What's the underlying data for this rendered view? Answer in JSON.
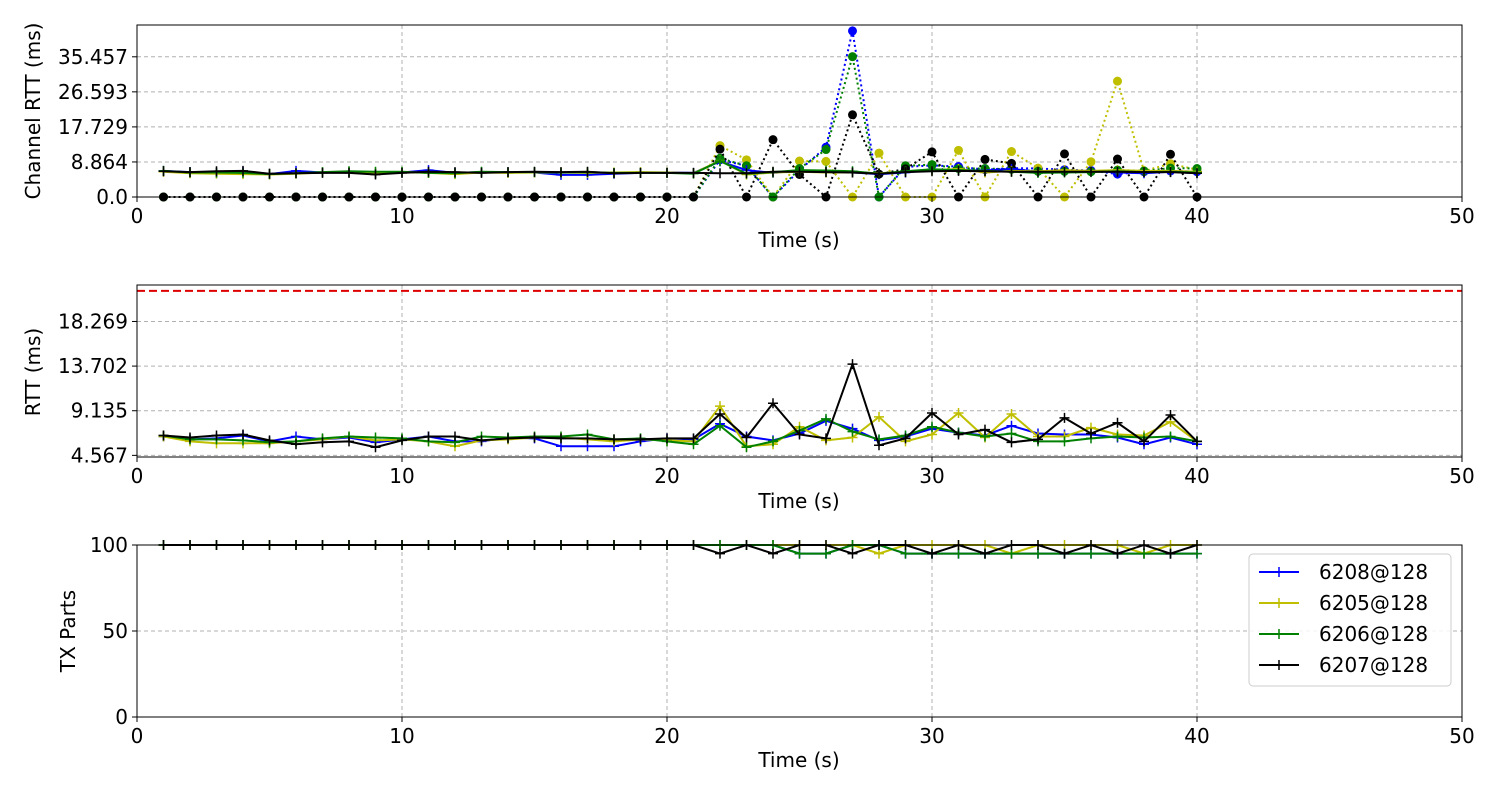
{
  "colors": {
    "6208@128": "#0000ff",
    "6205@128": "#bfbf00",
    "6206@128": "#008000",
    "6207@128": "#000000",
    "threshold": "#dd0000",
    "grid": "#b0b0b0"
  },
  "chart_data": [
    {
      "type": "line",
      "xlabel": "Time (s)",
      "ylabel": "Channel RTT (ms)",
      "xlim": [
        0,
        50
      ],
      "ylim": [
        0,
        43.5
      ],
      "xticks": [
        0,
        10,
        20,
        30,
        40,
        50
      ],
      "xtick_labels": [
        "0",
        "10",
        "20",
        "30",
        "40",
        "50"
      ],
      "yticks": [
        0.0,
        8.864,
        17.729,
        26.593,
        35.457
      ],
      "ytick_labels": [
        "0.0",
        "8.864",
        "17.729",
        "26.593",
        "35.457"
      ],
      "grid": true,
      "x": [
        1,
        2,
        3,
        4,
        5,
        6,
        7,
        8,
        9,
        10,
        11,
        12,
        13,
        14,
        15,
        16,
        17,
        18,
        19,
        20,
        21,
        22,
        23,
        24,
        25,
        26,
        27,
        28,
        29,
        30,
        31,
        32,
        33,
        34,
        35,
        36,
        37,
        38,
        39,
        40
      ],
      "series": [
        {
          "name": "6208@128",
          "style": "avg",
          "values": [
            6.6,
            6.3,
            6.1,
            6.4,
            5.8,
            6.6,
            6.2,
            6.3,
            5.9,
            6.2,
            6.8,
            6.1,
            6.3,
            6.2,
            6.2,
            5.6,
            5.6,
            5.9,
            6.1,
            6.2,
            6.1,
            9.0,
            6.8,
            6.1,
            6.7,
            6.3,
            6.2,
            5.8,
            6.2,
            6.9,
            6.8,
            6.7,
            7.1,
            6.4,
            6.5,
            6.6,
            6.2,
            6.0,
            6.4,
            6.0
          ]
        },
        {
          "name": "6205@128",
          "style": "avg",
          "values": [
            6.4,
            6.0,
            5.9,
            5.8,
            5.7,
            5.9,
            6.2,
            6.4,
            6.2,
            6.3,
            6.1,
            5.8,
            6.2,
            6.1,
            6.2,
            6.2,
            6.1,
            6.2,
            6.3,
            6.2,
            6.0,
            9.2,
            5.7,
            6.2,
            6.4,
            6.2,
            6.2,
            6.0,
            6.4,
            6.7,
            7.1,
            6.2,
            6.6,
            6.5,
            6.8,
            6.6,
            6.8,
            6.6,
            6.6,
            6.4
          ]
        },
        {
          "name": "6206@128",
          "style": "avg",
          "values": [
            6.6,
            6.2,
            6.2,
            6.1,
            5.8,
            6.0,
            6.3,
            6.5,
            6.4,
            6.4,
            6.1,
            6.0,
            6.4,
            6.3,
            6.3,
            6.2,
            6.3,
            6.1,
            6.1,
            6.1,
            5.9,
            9.1,
            5.9,
            6.3,
            6.8,
            6.7,
            6.5,
            5.9,
            6.5,
            7.0,
            6.8,
            6.6,
            6.4,
            6.1,
            6.2,
            6.3,
            6.5,
            6.3,
            6.4,
            6.2
          ]
        },
        {
          "name": "6207@128",
          "style": "avg",
          "values": [
            6.5,
            6.3,
            6.5,
            6.6,
            5.9,
            6.0,
            6.1,
            6.1,
            5.7,
            6.1,
            6.4,
            6.3,
            6.1,
            6.3,
            6.4,
            6.3,
            6.4,
            6.0,
            6.1,
            6.1,
            6.1,
            6.0,
            6.0,
            6.4,
            6.4,
            6.3,
            6.2,
            5.9,
            6.3,
            6.5,
            6.6,
            6.5,
            6.4,
            6.4,
            6.4,
            6.4,
            6.4,
            6.3,
            6.3,
            6.0
          ]
        },
        {
          "name": "6208@128",
          "style": "peak",
          "values": [
            0,
            0,
            0,
            0,
            0,
            0,
            0,
            0,
            0,
            0,
            0,
            0,
            0,
            0,
            0,
            0,
            0,
            0,
            0,
            0,
            0,
            9.4,
            7.9,
            0,
            6.8,
            12.6,
            42.0,
            0,
            7.6,
            8.0,
            7.7,
            6.9,
            7.3,
            7.2,
            6.9,
            6.7,
            5.8,
            6.4,
            6.6,
            6.4
          ]
        },
        {
          "name": "6205@128",
          "style": "peak",
          "values": [
            0,
            0,
            0,
            0,
            0,
            0,
            0,
            0,
            0,
            0,
            0,
            0,
            0,
            0,
            0,
            0,
            0,
            0,
            0,
            0,
            0,
            13.0,
            9.4,
            0,
            9.1,
            9.0,
            0,
            11.1,
            0,
            0,
            11.8,
            0,
            11.5,
            7.3,
            0,
            8.9,
            29.3,
            6.6,
            8.4,
            6.9
          ]
        },
        {
          "name": "6206@128",
          "style": "peak",
          "values": [
            0,
            0,
            0,
            0,
            0,
            0,
            0,
            0,
            0,
            0,
            0,
            0,
            0,
            0,
            0,
            0,
            0,
            0,
            0,
            0,
            0,
            9.8,
            7.9,
            0,
            7.2,
            12.0,
            35.5,
            0,
            7.9,
            8.2,
            7.2,
            7.2,
            7.0,
            6.5,
            6.5,
            6.4,
            6.8,
            6.6,
            7.3,
            7.2
          ]
        },
        {
          "name": "6207@128",
          "style": "peak",
          "values": [
            0,
            0,
            0,
            0,
            0,
            0,
            0,
            0,
            0,
            0,
            0,
            0,
            0,
            0,
            0,
            0,
            0,
            0,
            0,
            0,
            0,
            12.1,
            0,
            14.5,
            5.7,
            0,
            20.8,
            5.8,
            7.1,
            11.4,
            0,
            9.5,
            8.5,
            0,
            10.9,
            0,
            9.6,
            0,
            10.8,
            0
          ]
        }
      ]
    },
    {
      "type": "line",
      "xlabel": "Time (s)",
      "ylabel": "RTT (ms)",
      "xlim": [
        0,
        50
      ],
      "ylim": [
        4.4,
        22.0
      ],
      "xticks": [
        0,
        10,
        20,
        30,
        40,
        50
      ],
      "xtick_labels": [
        "0",
        "10",
        "20",
        "30",
        "40",
        "50"
      ],
      "yticks": [
        4.567,
        9.135,
        13.702,
        18.269
      ],
      "ytick_labels": [
        "4.567",
        "9.135",
        "13.702",
        "18.269"
      ],
      "grid": true,
      "threshold": 21.4,
      "x": [
        1,
        2,
        3,
        4,
        5,
        6,
        7,
        8,
        9,
        10,
        11,
        12,
        13,
        14,
        15,
        16,
        17,
        18,
        19,
        20,
        21,
        22,
        23,
        24,
        25,
        26,
        27,
        28,
        29,
        30,
        31,
        32,
        33,
        34,
        35,
        36,
        37,
        38,
        39,
        40
      ],
      "series": [
        {
          "name": "6208@128",
          "values": [
            6.5,
            6.2,
            6.3,
            6.6,
            6.0,
            6.5,
            6.2,
            6.4,
            5.9,
            6.2,
            6.5,
            6.0,
            6.0,
            6.4,
            6.3,
            5.5,
            5.5,
            5.5,
            6.0,
            6.3,
            6.2,
            7.8,
            6.5,
            6.1,
            6.8,
            8.1,
            7.3,
            6.1,
            6.5,
            7.3,
            6.9,
            6.6,
            7.6,
            6.8,
            6.7,
            6.7,
            6.4,
            5.7,
            6.4,
            5.7
          ]
        },
        {
          "name": "6205@128",
          "values": [
            6.5,
            6.0,
            5.8,
            5.8,
            5.8,
            6.0,
            6.2,
            6.5,
            6.1,
            6.2,
            6.0,
            5.5,
            6.1,
            6.2,
            6.4,
            6.4,
            6.2,
            6.0,
            6.2,
            6.1,
            6.0,
            9.6,
            5.5,
            5.7,
            7.5,
            6.1,
            6.4,
            8.5,
            6.0,
            6.7,
            8.9,
            6.4,
            8.8,
            6.5,
            6.5,
            7.4,
            6.7,
            6.6,
            8.0,
            6.0
          ]
        },
        {
          "name": "6206@128",
          "values": [
            6.6,
            6.2,
            6.2,
            6.1,
            5.9,
            6.0,
            6.3,
            6.5,
            6.4,
            6.3,
            6.0,
            5.9,
            6.5,
            6.4,
            6.5,
            6.5,
            6.7,
            6.2,
            6.3,
            6.0,
            5.7,
            7.6,
            5.4,
            6.0,
            7.1,
            8.3,
            7.0,
            6.2,
            6.6,
            7.5,
            6.9,
            6.5,
            6.8,
            6.0,
            6.0,
            6.3,
            6.5,
            6.4,
            6.5,
            6.0
          ]
        },
        {
          "name": "6207@128",
          "values": [
            6.6,
            6.4,
            6.6,
            6.7,
            6.1,
            5.7,
            5.9,
            6.0,
            5.4,
            6.1,
            6.5,
            6.5,
            6.1,
            6.3,
            6.4,
            6.3,
            6.3,
            6.2,
            6.2,
            6.3,
            6.3,
            8.8,
            6.4,
            9.9,
            6.7,
            6.3,
            13.9,
            5.6,
            6.3,
            8.9,
            6.7,
            7.2,
            5.9,
            6.2,
            8.4,
            6.8,
            7.9,
            6.0,
            8.7,
            6.0
          ]
        }
      ]
    },
    {
      "type": "line",
      "xlabel": "Time (s)",
      "ylabel": "TX Parts",
      "xlim": [
        0,
        50
      ],
      "ylim": [
        0,
        100
      ],
      "xticks": [
        0,
        10,
        20,
        30,
        40,
        50
      ],
      "xtick_labels": [
        "0",
        "10",
        "20",
        "30",
        "40",
        "50"
      ],
      "yticks": [
        0,
        50,
        100
      ],
      "ytick_labels": [
        "0",
        "50",
        "100"
      ],
      "grid": true,
      "legend_position": "upper-right",
      "x": [
        1,
        2,
        3,
        4,
        5,
        6,
        7,
        8,
        9,
        10,
        11,
        12,
        13,
        14,
        15,
        16,
        17,
        18,
        19,
        20,
        21,
        22,
        23,
        24,
        25,
        26,
        27,
        28,
        29,
        30,
        31,
        32,
        33,
        34,
        35,
        36,
        37,
        38,
        39,
        40
      ],
      "series": [
        {
          "name": "6208@128",
          "values": [
            100,
            100,
            100,
            100,
            100,
            100,
            100,
            100,
            100,
            100,
            100,
            100,
            100,
            100,
            100,
            100,
            100,
            100,
            100,
            100,
            100,
            100,
            100,
            100,
            95,
            95,
            100,
            100,
            95,
            95,
            95,
            95,
            95,
            95,
            95,
            95,
            95,
            95,
            95,
            95
          ]
        },
        {
          "name": "6205@128",
          "values": [
            100,
            100,
            100,
            100,
            100,
            100,
            100,
            100,
            100,
            100,
            100,
            100,
            100,
            100,
            100,
            100,
            100,
            100,
            100,
            100,
            100,
            100,
            100,
            100,
            100,
            100,
            100,
            95,
            100,
            100,
            100,
            100,
            95,
            100,
            100,
            100,
            100,
            95,
            100,
            100
          ]
        },
        {
          "name": "6206@128",
          "values": [
            100,
            100,
            100,
            100,
            100,
            100,
            100,
            100,
            100,
            100,
            100,
            100,
            100,
            100,
            100,
            100,
            100,
            100,
            100,
            100,
            100,
            100,
            100,
            100,
            95,
            95,
            100,
            100,
            95,
            95,
            95,
            95,
            95,
            95,
            95,
            95,
            95,
            95,
            95,
            95
          ]
        },
        {
          "name": "6207@128",
          "values": [
            100,
            100,
            100,
            100,
            100,
            100,
            100,
            100,
            100,
            100,
            100,
            100,
            100,
            100,
            100,
            100,
            100,
            100,
            100,
            100,
            100,
            95,
            100,
            95,
            100,
            100,
            95,
            100,
            100,
            95,
            100,
            95,
            100,
            100,
            95,
            100,
            95,
            100,
            95,
            100
          ]
        }
      ]
    }
  ]
}
